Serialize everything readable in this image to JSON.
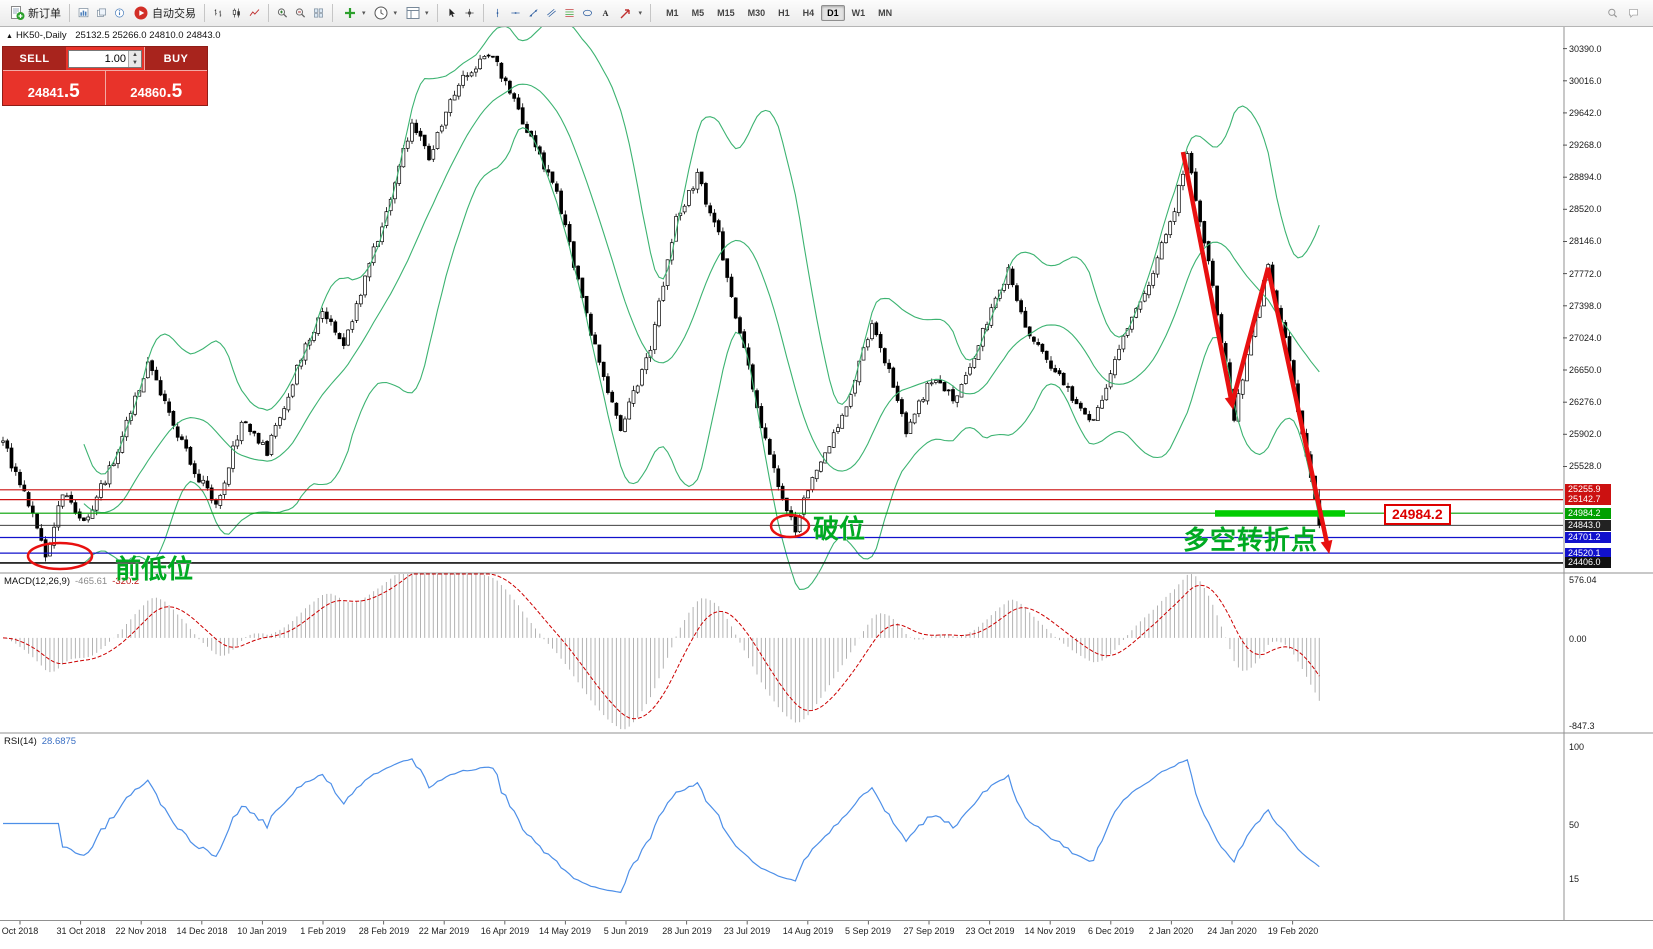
{
  "colors": {
    "bollinger": "#3cb371",
    "candle_up": "#ffffff",
    "candle_down": "#000000",
    "macd_histogram": "#b3b3b3",
    "macd_signal": "#cc0000",
    "rsi_line": "#4d8fe8",
    "annotation_green": "#00aa22",
    "annotation_red": "#e81010",
    "support_zone_green": "#00cc00"
  },
  "toolbar": {
    "new_order": "新订单",
    "auto_trading": "自动交易",
    "timeframes": [
      "M1",
      "M5",
      "M15",
      "M30",
      "H1",
      "H4",
      "D1",
      "W1",
      "MN"
    ],
    "active_timeframe": "D1"
  },
  "trade_widget": {
    "sell_label": "SELL",
    "buy_label": "BUY",
    "volume": "1.00",
    "sell_price": {
      "main": "24841",
      "frac": ".5"
    },
    "buy_price": {
      "main": "24860",
      "frac": ".5"
    }
  },
  "chart_header": {
    "marker": "▲",
    "title": "HK50-,Daily",
    "ohlc": "25132.5 25266.0 24810.0 24843.0"
  },
  "annotations": {
    "prev_low": "前低位",
    "breakdown": "破位",
    "turning_point": "多空转折点",
    "price_callout": "24984.2"
  },
  "macd_panel": {
    "name": "MACD(12,26,9)",
    "value_main": "-465.61",
    "value_signal": "-320.2",
    "axis": [
      {
        "text": "576.04",
        "value": 576.04
      },
      {
        "text": "0.00",
        "value": 0
      },
      {
        "text": "-847.3",
        "value": -847.3
      }
    ]
  },
  "rsi_panel": {
    "name": "RSI(14)",
    "value": "28.6875",
    "axis": [
      {
        "text": "100",
        "value": 100
      },
      {
        "text": "50",
        "value": 50
      },
      {
        "text": "15",
        "value": 15
      }
    ]
  },
  "chart_data": {
    "type": "candlestick",
    "symbol": "HK50",
    "period": "Daily",
    "ohlc_last": {
      "open": 25132.5,
      "high": 25266.0,
      "low": 24810.0,
      "close": 24843.0
    },
    "price_axis": {
      "min": 24300,
      "max": 30630,
      "ticks": [
        30390.0,
        30016.0,
        29642.0,
        29268.0,
        28894.0,
        28520.0,
        28146.0,
        27772.0,
        27398.0,
        27024.0,
        26650.0,
        26276.0,
        25902.0,
        25528.0
      ]
    },
    "hlines": [
      {
        "price": 25255.9,
        "label": "25255.9",
        "color": "#cc1111"
      },
      {
        "price": 25142.7,
        "label": "25142.7",
        "color": "#cc1111"
      },
      {
        "price": 24984.2,
        "label": "24984.2",
        "color": "#00a000"
      },
      {
        "price": 24843.0,
        "label": "24843.0",
        "color": "#222222"
      },
      {
        "price": 24701.2,
        "label": "24701.2",
        "color": "#1111cc"
      },
      {
        "price": 24520.1,
        "label": "24520.1",
        "color": "#1111cc"
      },
      {
        "price": 24406.0,
        "label": "24406.0",
        "color": "#111111"
      }
    ],
    "support_zone": {
      "price": 24984.2
    },
    "indicators": {
      "bollinger_period": 20,
      "bollinger_deviation": 2,
      "macd": [
        12,
        26,
        9
      ],
      "rsi_period": 14,
      "rsi_value": 28.6875
    },
    "candle_count": 310,
    "trend_keypoints": [
      [
        0,
        25800
      ],
      [
        6,
        25100
      ],
      [
        10,
        24480
      ],
      [
        14,
        25250
      ],
      [
        19,
        24850
      ],
      [
        26,
        25600
      ],
      [
        34,
        26750
      ],
      [
        40,
        26000
      ],
      [
        46,
        25400
      ],
      [
        50,
        25050
      ],
      [
        56,
        26050
      ],
      [
        62,
        25700
      ],
      [
        70,
        26800
      ],
      [
        75,
        27300
      ],
      [
        80,
        26950
      ],
      [
        88,
        28200
      ],
      [
        96,
        29500
      ],
      [
        100,
        29150
      ],
      [
        108,
        30100
      ],
      [
        115,
        30300
      ],
      [
        122,
        29550
      ],
      [
        130,
        28700
      ],
      [
        138,
        27100
      ],
      [
        145,
        25950
      ],
      [
        152,
        26900
      ],
      [
        158,
        28400
      ],
      [
        163,
        28900
      ],
      [
        168,
        28200
      ],
      [
        172,
        27300
      ],
      [
        178,
        26000
      ],
      [
        183,
        25150
      ],
      [
        186,
        24800
      ],
      [
        190,
        25450
      ],
      [
        196,
        25950
      ],
      [
        204,
        27200
      ],
      [
        208,
        26650
      ],
      [
        212,
        25950
      ],
      [
        218,
        26550
      ],
      [
        224,
        26300
      ],
      [
        230,
        27100
      ],
      [
        236,
        27800
      ],
      [
        240,
        27150
      ],
      [
        246,
        26700
      ],
      [
        252,
        26250
      ],
      [
        256,
        26050
      ],
      [
        262,
        26900
      ],
      [
        268,
        27550
      ],
      [
        274,
        28350
      ],
      [
        278,
        29150
      ],
      [
        283,
        27900
      ],
      [
        289,
        26100
      ],
      [
        293,
        27000
      ],
      [
        297,
        27850
      ],
      [
        301,
        27000
      ],
      [
        305,
        25900
      ],
      [
        309,
        24900
      ]
    ],
    "dates": [
      "Oct 2018",
      "31 Oct 2018",
      "22 Nov 2018",
      "14 Dec 2018",
      "10 Jan 2019",
      "1 Feb 2019",
      "28 Feb 2019",
      "22 Mar 2019",
      "16 Apr 2019",
      "14 May 2019",
      "5 Jun 2019",
      "28 Jun 2019",
      "23 Jul 2019",
      "14 Aug 2019",
      "5 Sep 2019",
      "27 Sep 2019",
      "23 Oct 2019",
      "14 Nov 2019",
      "6 Dec 2019",
      "2 Jan 2020",
      "24 Jan 2020",
      "19 Feb 2020"
    ]
  }
}
